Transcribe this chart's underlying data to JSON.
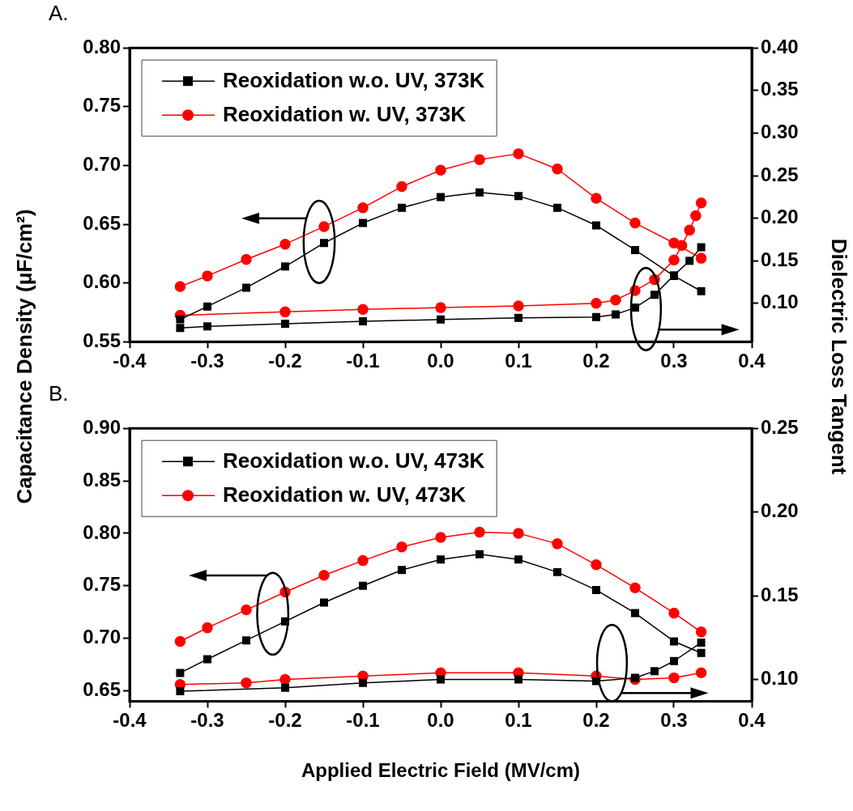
{
  "chart_data": [
    {
      "type": "line",
      "title": "A.",
      "ylabel": "Capacitance Density (μF/cm²)",
      "y2label": "Dielectric Loss Tangent",
      "legend": "top left",
      "xlim": [
        -0.4,
        0.4
      ],
      "xticks": [
        -0.4,
        -0.3,
        -0.2,
        -0.1,
        {
          "value": 0,
          "label": "0.0"
        },
        0.1,
        0.2,
        0.3,
        0.4
      ],
      "ylim": [
        0.55,
        0.8
      ],
      "yticks": [
        0.55,
        {
          "value": 0.6,
          "label": "0.60"
        },
        0.65,
        {
          "value": 0.7,
          "label": "0.70"
        },
        0.75,
        {
          "value": 0.8,
          "label": "0.80"
        }
      ],
      "y2lim": [
        0.055,
        0.4
      ],
      "y2ticks": [
        {
          "value": 0.1,
          "label": "0.10"
        },
        0.15,
        {
          "value": 0.2,
          "label": "0.20"
        },
        0.25,
        {
          "value": 0.3,
          "label": "0.30"
        },
        0.35,
        {
          "value": 0.4,
          "label": "0.40"
        }
      ],
      "series": [
        {
          "name": "Reoxidation w.o. UV, 373K",
          "color": "#000000",
          "marker": "square",
          "x": [
            -0.335,
            -0.3,
            -0.25,
            -0.2,
            -0.15,
            -0.1,
            -0.05,
            0,
            0.05,
            0.1,
            0.15,
            0.2,
            0.25,
            0.3,
            0.335
          ],
          "values": [
            0.569,
            0.58,
            0.596,
            0.614,
            0.634,
            0.651,
            0.664,
            0.673,
            0.677,
            0.674,
            0.664,
            0.649,
            0.628,
            0.606,
            0.593
          ]
        },
        {
          "name": "Reoxidation w. UV, 373K",
          "color": "#ff0000",
          "marker": "circle",
          "x": [
            -0.335,
            -0.3,
            -0.25,
            -0.2,
            -0.15,
            -0.1,
            -0.05,
            0,
            0.05,
            0.1,
            0.15,
            0.2,
            0.25,
            0.3,
            0.335
          ],
          "values": [
            0.597,
            0.606,
            0.62,
            0.633,
            0.648,
            0.664,
            0.682,
            0.696,
            0.705,
            0.71,
            0.697,
            0.672,
            0.651,
            0.634,
            0.621
          ]
        },
        {
          "color": "#000000",
          "marker": "square",
          "axis": "y2",
          "x": [
            -0.335,
            -0.3,
            -0.2,
            -0.1,
            0,
            0.1,
            0.2,
            0.225,
            0.25,
            0.275,
            0.3,
            0.32,
            0.335
          ],
          "values": [
            0.071,
            0.073,
            0.076,
            0.079,
            0.081,
            0.083,
            0.084,
            0.087,
            0.095,
            0.11,
            0.133,
            0.15,
            0.166
          ]
        },
        {
          "color": "#ff0000",
          "marker": "circle",
          "axis": "y2",
          "x": [
            -0.335,
            -0.2,
            -0.1,
            0,
            0.1,
            0.2,
            0.225,
            0.25,
            0.275,
            0.3,
            0.31,
            0.32,
            0.328,
            0.335
          ],
          "values": [
            0.086,
            0.09,
            0.093,
            0.095,
            0.097,
            0.1,
            0.104,
            0.115,
            0.128,
            0.151,
            0.168,
            0.186,
            0.203,
            0.218
          ]
        }
      ]
    },
    {
      "type": "line",
      "title": "B.",
      "xlabel": "Applied Electric Field (MV/cm)",
      "legend": "top left",
      "xlim": [
        -0.4,
        0.4
      ],
      "xticks": [
        -0.4,
        -0.3,
        -0.2,
        -0.1,
        {
          "value": 0,
          "label": "0.0"
        },
        0.1,
        0.2,
        0.3,
        0.4
      ],
      "ylim": [
        0.64,
        0.9
      ],
      "yticks": [
        0.65,
        {
          "value": 0.7,
          "label": "0.70"
        },
        0.75,
        {
          "value": 0.8,
          "label": "0.80"
        },
        0.85,
        {
          "value": 0.9,
          "label": "0.90"
        }
      ],
      "y2lim": [
        0.087,
        0.25
      ],
      "y2ticks": [
        {
          "value": 0.1,
          "label": "0.10"
        },
        0.15,
        {
          "value": 0.2,
          "label": "0.20"
        },
        0.25
      ],
      "series": [
        {
          "name": "Reoxidation w.o. UV, 473K",
          "color": "#000000",
          "marker": "square",
          "x": [
            -0.335,
            -0.3,
            -0.25,
            -0.2,
            -0.15,
            -0.1,
            -0.05,
            0,
            0.05,
            0.1,
            0.15,
            0.2,
            0.25,
            0.3,
            0.335
          ],
          "values": [
            0.667,
            0.68,
            0.698,
            0.716,
            0.734,
            0.75,
            0.765,
            0.775,
            0.78,
            0.775,
            0.763,
            0.746,
            0.724,
            0.697,
            0.686
          ]
        },
        {
          "name": "Reoxidation w. UV, 473K",
          "color": "#ff0000",
          "marker": "circle",
          "x": [
            -0.335,
            -0.3,
            -0.25,
            -0.2,
            -0.15,
            -0.1,
            -0.05,
            0,
            0.05,
            0.1,
            0.15,
            0.2,
            0.25,
            0.3,
            0.335
          ],
          "values": [
            0.697,
            0.71,
            0.727,
            0.744,
            0.76,
            0.774,
            0.787,
            0.796,
            0.801,
            0.8,
            0.79,
            0.77,
            0.748,
            0.724,
            0.706
          ]
        },
        {
          "color": "#000000",
          "marker": "square",
          "axis": "y2",
          "x": [
            -0.335,
            -0.2,
            -0.1,
            0,
            0.1,
            0.2,
            0.25,
            0.275,
            0.3,
            0.335
          ],
          "values": [
            0.093,
            0.095,
            0.098,
            0.1,
            0.1,
            0.099,
            0.101,
            0.105,
            0.111,
            0.122
          ]
        },
        {
          "color": "#ff0000",
          "marker": "circle",
          "axis": "y2",
          "x": [
            -0.335,
            -0.25,
            -0.2,
            -0.1,
            0,
            0.1,
            0.2,
            0.25,
            0.3,
            0.335
          ],
          "values": [
            0.097,
            0.098,
            0.1,
            0.102,
            0.104,
            0.104,
            0.102,
            0.1,
            0.101,
            0.104
          ]
        }
      ]
    }
  ]
}
